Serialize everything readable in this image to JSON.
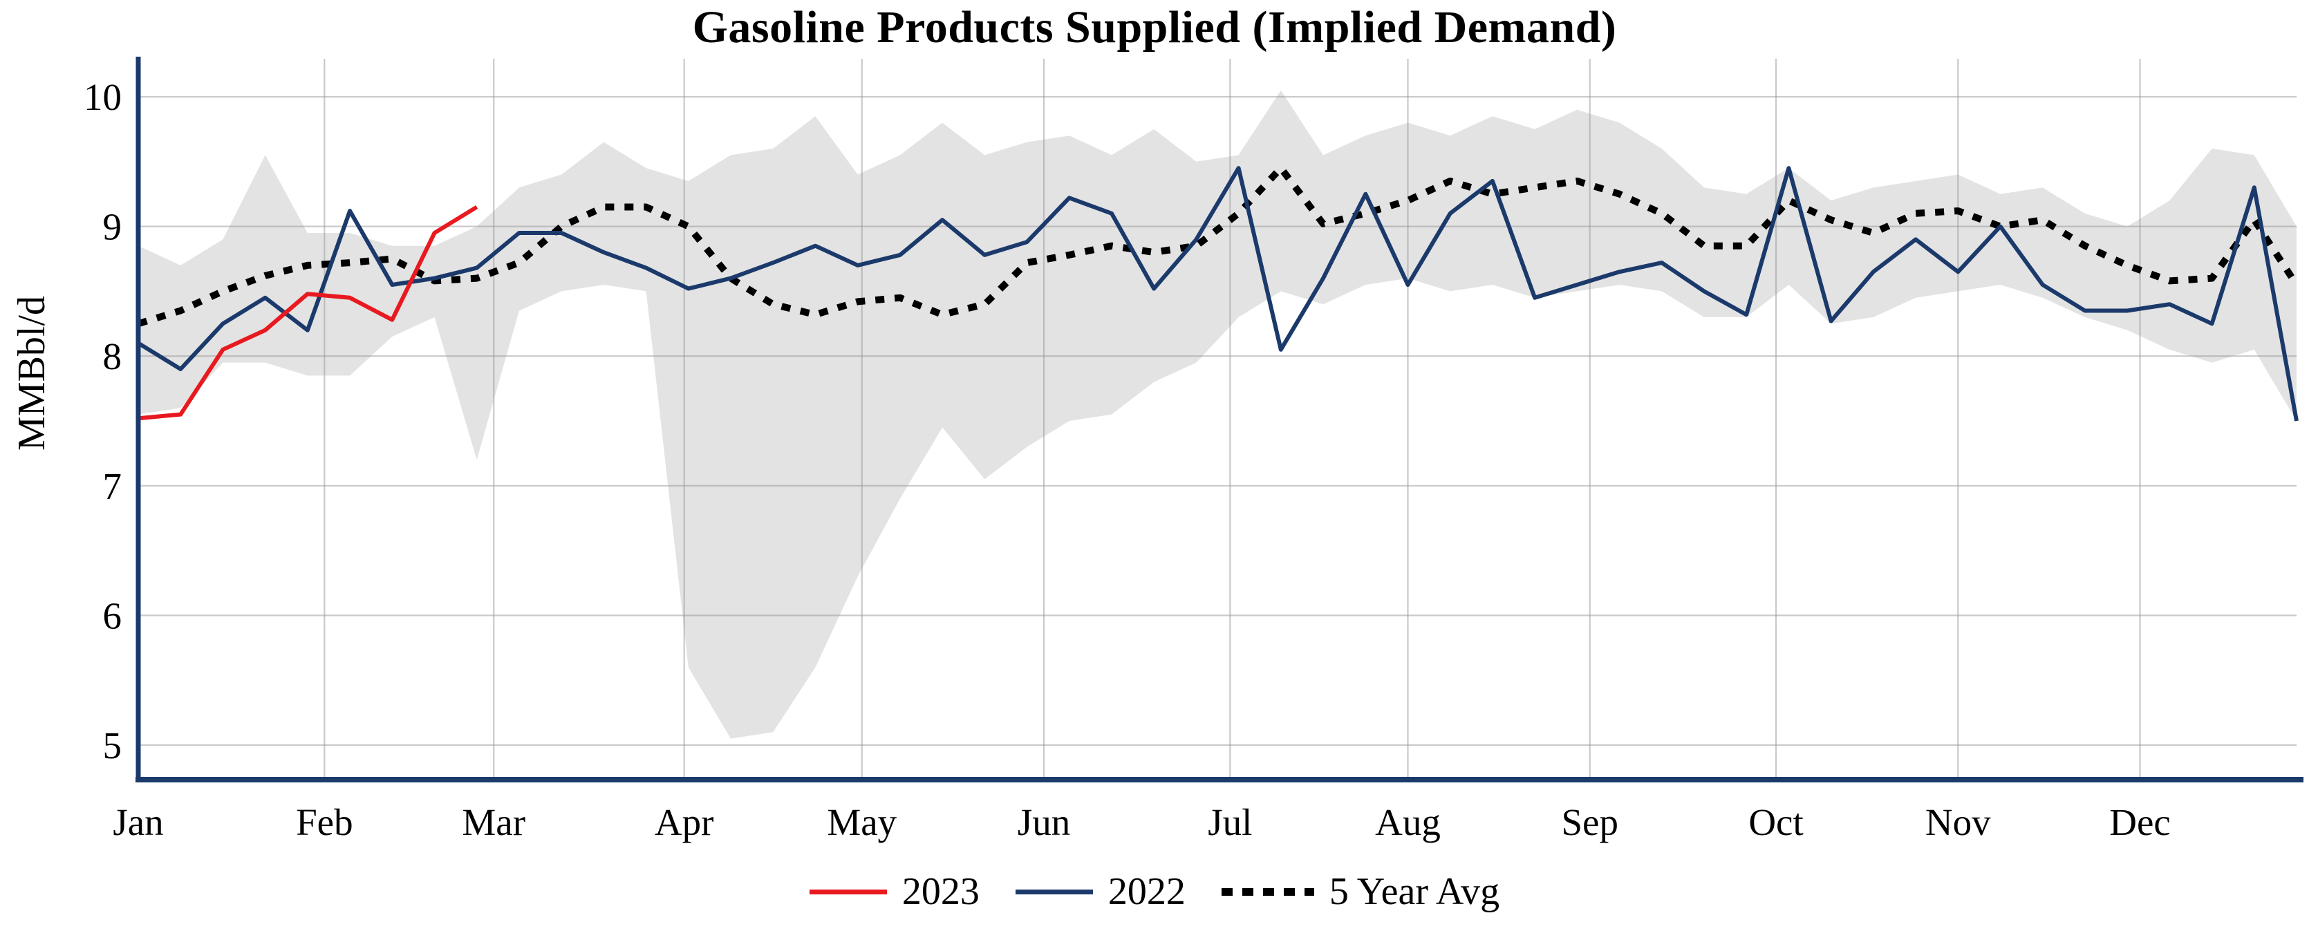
{
  "chart_data": {
    "type": "line",
    "title": "Gasoline Products Supplied (Implied Demand)",
    "xlabel": "",
    "ylabel": "MMBbl/d",
    "ylim": [
      4.7,
      10.3
    ],
    "yticks": [
      5,
      6,
      7,
      8,
      9,
      10
    ],
    "grid": true,
    "weeks": 52,
    "month_ticks": [
      {
        "label": "Jan",
        "week": 1
      },
      {
        "label": "Feb",
        "week": 5.4
      },
      {
        "label": "Mar",
        "week": 9.4
      },
      {
        "label": "Apr",
        "week": 13.9
      },
      {
        "label": "May",
        "week": 18.1
      },
      {
        "label": "Jun",
        "week": 22.4
      },
      {
        "label": "Jul",
        "week": 26.8
      },
      {
        "label": "Aug",
        "week": 31.0
      },
      {
        "label": "Sep",
        "week": 35.3
      },
      {
        "label": "Oct",
        "week": 39.7
      },
      {
        "label": "Nov",
        "week": 44.0
      },
      {
        "label": "Dec",
        "week": 48.3
      }
    ],
    "colors": {
      "axis": "#1b3a6b",
      "grid": "#c9c9c9",
      "band": "#e3e3e3",
      "red_2023": "#e8191f",
      "navy_2022": "#1b3a6b",
      "black_avg": "#000000"
    },
    "band": {
      "name": "5-year range",
      "color": "#e3e3e3",
      "upper": [
        8.85,
        8.7,
        8.9,
        9.55,
        8.95,
        8.95,
        8.85,
        8.85,
        9.0,
        9.3,
        9.4,
        9.65,
        9.45,
        9.35,
        9.55,
        9.6,
        9.85,
        9.4,
        9.55,
        9.8,
        9.55,
        9.65,
        9.7,
        9.55,
        9.75,
        9.5,
        9.55,
        10.05,
        9.55,
        9.7,
        9.8,
        9.7,
        9.85,
        9.75,
        9.9,
        9.8,
        9.6,
        9.3,
        9.25,
        9.45,
        9.2,
        9.3,
        9.35,
        9.4,
        9.25,
        9.3,
        9.1,
        9.0,
        9.2,
        9.6,
        9.55,
        9.0
      ],
      "lower": [
        7.55,
        7.6,
        7.95,
        7.95,
        7.85,
        7.85,
        8.15,
        8.3,
        7.2,
        8.35,
        8.5,
        8.55,
        8.5,
        5.6,
        5.05,
        5.1,
        5.6,
        6.3,
        6.9,
        7.45,
        7.05,
        7.3,
        7.5,
        7.55,
        7.8,
        7.95,
        8.3,
        8.5,
        8.4,
        8.55,
        8.6,
        8.5,
        8.55,
        8.45,
        8.5,
        8.55,
        8.5,
        8.3,
        8.3,
        8.55,
        8.25,
        8.3,
        8.45,
        8.5,
        8.55,
        8.45,
        8.3,
        8.2,
        8.05,
        7.95,
        8.05,
        7.5
      ]
    },
    "series": [
      {
        "name": "5 Year Avg",
        "color": "#000000",
        "style": "dotted",
        "values": [
          8.25,
          8.35,
          8.5,
          8.62,
          8.7,
          8.72,
          8.75,
          8.58,
          8.6,
          8.72,
          9.0,
          9.15,
          9.15,
          9.0,
          8.6,
          8.4,
          8.32,
          8.42,
          8.45,
          8.32,
          8.4,
          8.72,
          8.78,
          8.85,
          8.8,
          8.85,
          9.1,
          9.45,
          9.02,
          9.1,
          9.2,
          9.35,
          9.25,
          9.3,
          9.35,
          9.25,
          9.1,
          8.85,
          8.85,
          9.2,
          9.05,
          8.95,
          9.1,
          9.12,
          9.0,
          9.05,
          8.85,
          8.7,
          8.58,
          8.6,
          9.05,
          8.55
        ]
      },
      {
        "name": "2022",
        "color": "#1b3a6b",
        "style": "solid",
        "values": [
          8.1,
          7.9,
          8.25,
          8.45,
          8.2,
          9.12,
          8.55,
          8.6,
          8.68,
          8.95,
          8.95,
          8.8,
          8.68,
          8.52,
          8.6,
          8.72,
          8.85,
          8.7,
          8.78,
          9.05,
          8.78,
          8.88,
          9.22,
          9.1,
          8.52,
          8.9,
          9.45,
          8.05,
          8.6,
          9.25,
          8.55,
          9.1,
          9.35,
          8.45,
          8.55,
          8.65,
          8.72,
          8.5,
          8.32,
          9.45,
          8.27,
          8.65,
          8.9,
          8.65,
          9.0,
          8.55,
          8.35,
          8.35,
          8.4,
          8.25,
          9.3,
          7.5
        ]
      },
      {
        "name": "2023",
        "color": "#e8191f",
        "style": "solid",
        "values": [
          7.52,
          7.55,
          8.05,
          8.2,
          8.48,
          8.45,
          8.28,
          8.95,
          9.15
        ]
      }
    ],
    "legend": {
      "position": "bottom-center",
      "entries": [
        "2023",
        "2022",
        "5 Year Avg"
      ]
    }
  }
}
